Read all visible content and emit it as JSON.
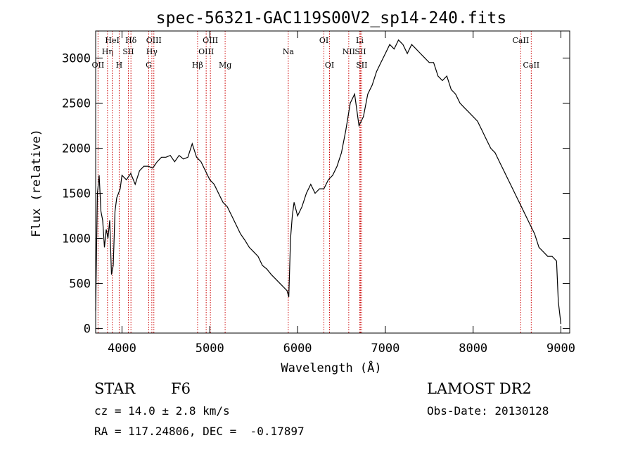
{
  "chart_data": {
    "type": "line",
    "title": "spec-56321-GAC119S00V2_sp14-240.fits",
    "xlabel": "Wavelength (Å)",
    "ylabel": "Flux (relative)",
    "xlim": [
      3700,
      9100
    ],
    "ylim": [
      -50,
      3300
    ],
    "x_ticks": [
      4000,
      5000,
      6000,
      7000,
      8000,
      9000
    ],
    "y_ticks": [
      0,
      500,
      1000,
      1500,
      2000,
      2500,
      3000
    ],
    "grid": false,
    "line_color": "#000000",
    "marker_color": "#cc0000",
    "series": [
      {
        "x": [
          3700,
          3720,
          3740,
          3760,
          3780,
          3800,
          3820,
          3840,
          3860,
          3880,
          3900,
          3920,
          3940,
          3960,
          3980,
          4000,
          4050,
          4100,
          4150,
          4200,
          4250,
          4300,
          4350,
          4400,
          4450,
          4500,
          4550,
          4600,
          4650,
          4700,
          4750,
          4800,
          4850,
          4900,
          4950,
          5000,
          5050,
          5100,
          5150,
          5200,
          5250,
          5300,
          5350,
          5400,
          5450,
          5500,
          5550,
          5600,
          5650,
          5700,
          5750,
          5800,
          5850,
          5880,
          5900,
          5920,
          5940,
          5960,
          6000,
          6050,
          6100,
          6150,
          6200,
          6250,
          6300,
          6350,
          6400,
          6450,
          6500,
          6550,
          6600,
          6650,
          6700,
          6750,
          6800,
          6850,
          6900,
          6950,
          7000,
          7050,
          7100,
          7150,
          7200,
          7250,
          7300,
          7350,
          7400,
          7450,
          7500,
          7550,
          7600,
          7650,
          7700,
          7750,
          7800,
          7850,
          7900,
          7950,
          8000,
          8050,
          8100,
          8150,
          8200,
          8250,
          8300,
          8350,
          8400,
          8450,
          8500,
          8550,
          8600,
          8650,
          8700,
          8750,
          8800,
          8850,
          8900,
          8950,
          8970,
          9000
        ],
        "y": [
          200,
          1500,
          1700,
          1300,
          1200,
          900,
          1100,
          1000,
          1200,
          600,
          700,
          1300,
          1450,
          1500,
          1550,
          1700,
          1650,
          1720,
          1600,
          1750,
          1800,
          1800,
          1780,
          1850,
          1900,
          1900,
          1920,
          1850,
          1920,
          1880,
          1900,
          2050,
          1900,
          1850,
          1750,
          1650,
          1600,
          1500,
          1400,
          1350,
          1250,
          1150,
          1050,
          980,
          900,
          850,
          800,
          700,
          660,
          600,
          550,
          500,
          450,
          420,
          350,
          1000,
          1250,
          1400,
          1250,
          1350,
          1500,
          1600,
          1500,
          1550,
          1550,
          1650,
          1700,
          1800,
          1950,
          2200,
          2500,
          2600,
          2250,
          2350,
          2600,
          2700,
          2850,
          2950,
          3050,
          3150,
          3100,
          3200,
          3150,
          3050,
          3150,
          3100,
          3050,
          3000,
          2950,
          2950,
          2800,
          2750,
          2800,
          2650,
          2600,
          2500,
          2450,
          2400,
          2350,
          2300,
          2200,
          2100,
          2000,
          1950,
          1850,
          1750,
          1650,
          1550,
          1450,
          1350,
          1250,
          1150,
          1050,
          900,
          850,
          800,
          800,
          750,
          300,
          50
        ]
      }
    ],
    "line_markers": [
      {
        "label": "OII",
        "wl": 3727,
        "row": 2
      },
      {
        "label": "Hη",
        "wl": 3835,
        "row": 1
      },
      {
        "label": "HeI",
        "wl": 3889,
        "row": 0
      },
      {
        "label": "H",
        "wl": 3968,
        "row": 2
      },
      {
        "label": "Hδ",
        "wl": 4102,
        "row": 0
      },
      {
        "label": "SII",
        "wl": 4072,
        "row": 1
      },
      {
        "label": "G",
        "wl": 4305,
        "row": 2
      },
      {
        "label": "OIII",
        "wl": 4363,
        "row": 0
      },
      {
        "label": "Hγ",
        "wl": 4340,
        "row": 1
      },
      {
        "label": "Hβ",
        "wl": 4861,
        "row": 2
      },
      {
        "label": "OIII",
        "wl": 5007,
        "row": 0
      },
      {
        "label": "OIII",
        "wl": 4959,
        "row": 1
      },
      {
        "label": "Mg",
        "wl": 5175,
        "row": 2
      },
      {
        "label": "Na",
        "wl": 5894,
        "row": 1
      },
      {
        "label": "OI",
        "wl": 6300,
        "row": 0
      },
      {
        "label": "OI",
        "wl": 6364,
        "row": 2
      },
      {
        "label": "NII",
        "wl": 6583,
        "row": 1
      },
      {
        "label": "Li",
        "wl": 6708,
        "row": 0
      },
      {
        "label": "SII",
        "wl": 6716,
        "row": 1
      },
      {
        "label": "SII",
        "wl": 6731,
        "row": 2
      },
      {
        "label": "CaII",
        "wl": 8542,
        "row": 0
      },
      {
        "label": "CaII",
        "wl": 8662,
        "row": 2
      }
    ]
  },
  "info": {
    "class": "STAR",
    "subclass": "F6",
    "survey": "LAMOST DR2",
    "cz": "cz = 14.0 ± 2.8 km/s",
    "obs_date": "Obs-Date: 20130128",
    "radec": "RA = 117.24806, DEC =  -0.17897"
  }
}
